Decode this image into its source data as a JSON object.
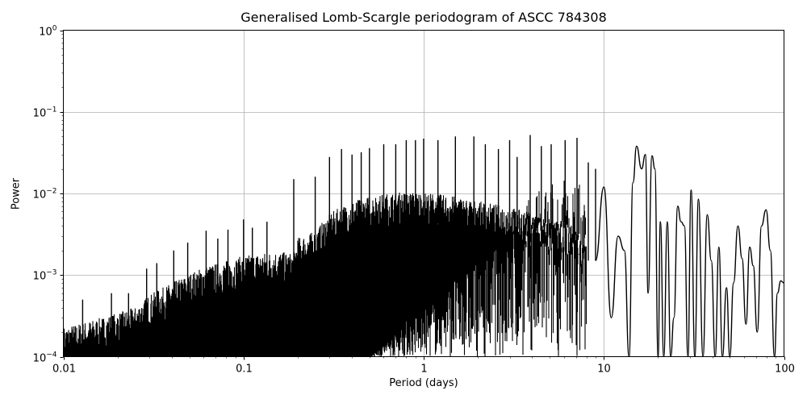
{
  "chart_data": {
    "type": "line",
    "title": "Generalised Lomb-Scargle periodogram of ASCC 784308",
    "xlabel": "Period (days)",
    "ylabel": "Power",
    "xscale": "log",
    "yscale": "log",
    "xlim": [
      0.01,
      100
    ],
    "ylim": [
      0.0001,
      1
    ],
    "grid": true,
    "legend": null,
    "line_color": "#000000",
    "grid_color": "#b0b0b0",
    "x_ticks": [
      {
        "value": 0.01,
        "label": "0.01"
      },
      {
        "value": 0.1,
        "label": "0.1"
      },
      {
        "value": 1,
        "label": "1"
      },
      {
        "value": 10,
        "label": "10"
      },
      {
        "value": 100,
        "label": "100"
      }
    ],
    "y_ticks": [
      {
        "value": 0.0001,
        "base": "10",
        "exp": "−4"
      },
      {
        "value": 0.001,
        "base": "10",
        "exp": "−3"
      },
      {
        "value": 0.01,
        "base": "10",
        "exp": "−2"
      },
      {
        "value": 0.1,
        "base": "10",
        "exp": "−1"
      },
      {
        "value": 1,
        "base": "10",
        "exp": "0"
      }
    ],
    "envelope": {
      "description": "dense noise band (upper envelope of period, power) across short periods",
      "x": [
        0.01,
        0.012,
        0.015,
        0.02,
        0.025,
        0.03,
        0.04,
        0.05,
        0.06,
        0.08,
        0.1,
        0.12,
        0.15,
        0.19,
        0.2,
        0.25,
        0.3,
        0.4,
        0.5,
        0.7,
        1.0,
        1.5,
        2.0,
        3.0,
        4.0,
        5.0,
        6.0,
        7.0,
        8.0
      ],
      "y": [
        0.0002,
        0.00022,
        0.00025,
        0.0003,
        0.00035,
        0.0005,
        0.0007,
        0.0009,
        0.0011,
        0.0013,
        0.0015,
        0.0016,
        0.0017,
        0.0016,
        0.0025,
        0.003,
        0.005,
        0.007,
        0.008,
        0.009,
        0.009,
        0.008,
        0.007,
        0.006,
        0.005,
        0.004,
        0.004,
        0.003,
        0.003
      ]
    },
    "peaks": {
      "x": [
        0.0128,
        0.0185,
        0.023,
        0.029,
        0.033,
        0.041,
        0.049,
        0.062,
        0.072,
        0.082,
        0.1,
        0.112,
        0.135,
        0.19,
        0.25,
        0.3,
        0.35,
        0.4,
        0.45,
        0.5,
        0.6,
        0.7,
        0.8,
        0.9,
        1.0,
        1.2,
        1.5,
        1.9,
        2.2,
        2.6,
        3.0,
        3.3,
        3.9,
        4.5,
        5.1,
        6.1,
        7.1,
        8.2,
        9.0
      ],
      "y": [
        0.0005,
        0.0006,
        0.0006,
        0.0012,
        0.0014,
        0.002,
        0.0025,
        0.0035,
        0.0028,
        0.0036,
        0.0048,
        0.0038,
        0.0045,
        0.015,
        0.016,
        0.028,
        0.035,
        0.03,
        0.032,
        0.036,
        0.04,
        0.04,
        0.045,
        0.045,
        0.047,
        0.045,
        0.05,
        0.05,
        0.04,
        0.035,
        0.045,
        0.028,
        0.052,
        0.038,
        0.04,
        0.045,
        0.048,
        0.024,
        0.02
      ]
    },
    "long_period_curve": {
      "description": "resolved oscillating curve at long periods",
      "x": [
        9.0,
        10.0,
        11.0,
        12.0,
        13.0,
        13.8,
        14.5,
        15.2,
        16.2,
        17.0,
        17.6,
        18.5,
        19.2,
        20.0,
        20.6,
        21.5,
        22.5,
        23.5,
        24.5,
        25.7,
        26.8,
        28.0,
        29.3,
        30.5,
        32.0,
        33.5,
        35.5,
        37.5,
        39.5,
        41.5,
        43.5,
        45.5,
        48.0,
        50.0,
        52.5,
        55.5,
        58.5,
        61.5,
        64.5,
        67.5,
        71.0,
        75.0,
        79.5,
        84.0,
        88.5,
        92.0,
        96.0,
        100.0
      ],
      "y": [
        0.0015,
        0.012,
        0.0003,
        0.003,
        0.002,
        0.0001,
        0.0135,
        0.038,
        0.02,
        0.03,
        0.0006,
        0.029,
        0.02,
        0.0001,
        0.0045,
        0.0001,
        0.0045,
        0.0001,
        0.0003,
        0.007,
        0.0045,
        0.004,
        0.0001,
        0.011,
        0.0001,
        0.0085,
        0.0001,
        0.0055,
        0.0015,
        0.0001,
        0.0022,
        5e-05,
        0.0007,
        5e-05,
        0.0008,
        0.004,
        0.0016,
        0.00025,
        0.0022,
        0.0013,
        0.0002,
        0.004,
        0.0063,
        0.002,
        5e-05,
        0.0006,
        0.00085,
        0.0008
      ]
    }
  }
}
